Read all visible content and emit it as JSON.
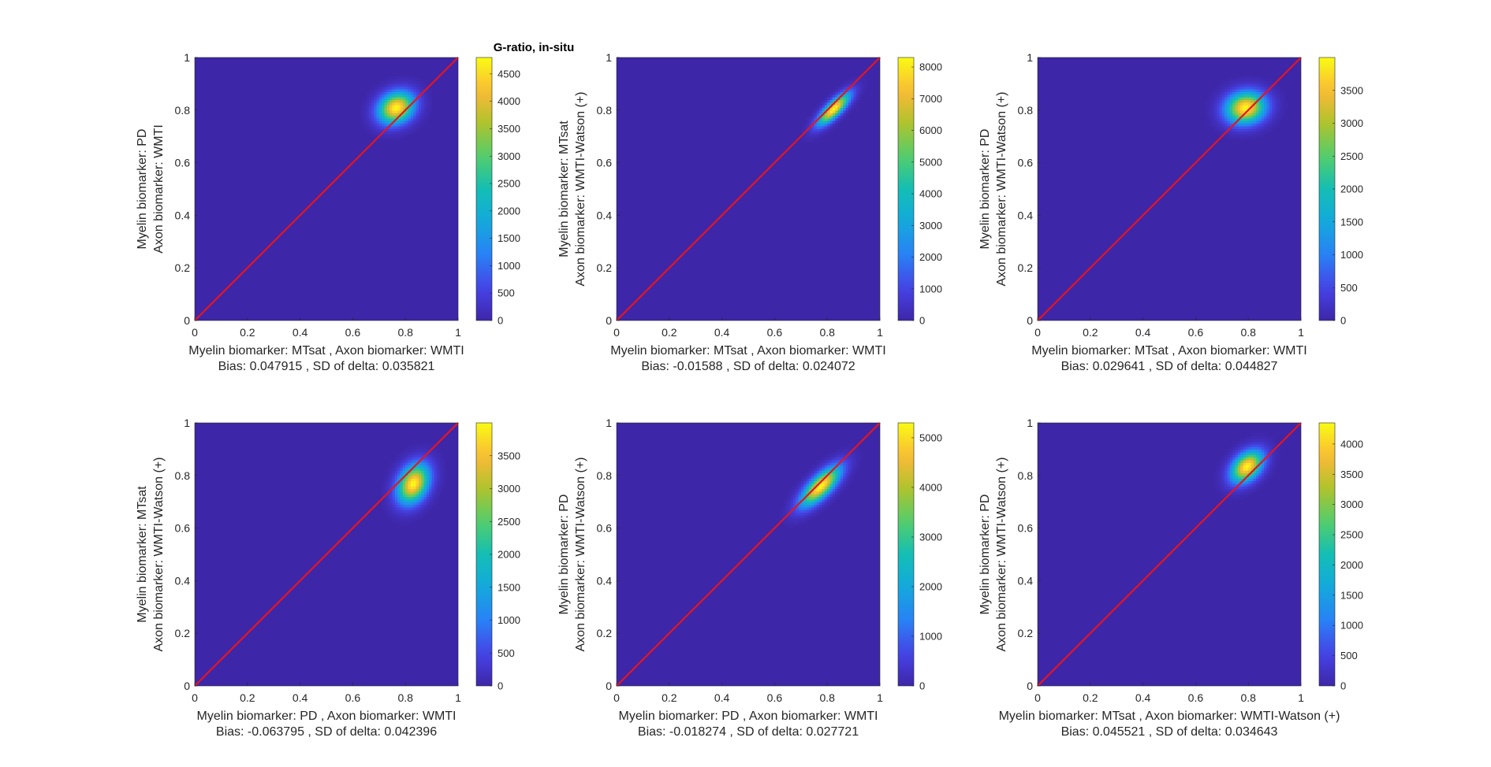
{
  "figure": {
    "title": "G-ratio, in-situ",
    "colormap": "parula"
  },
  "chart_data": [
    {
      "type": "heatmap",
      "xlabel": "Myelin biomarker: MTsat , Axon biomarker: WMTI",
      "ylabel_lines": [
        "Myelin biomarker:  PD",
        "Axon biomarker: WMTI"
      ],
      "caption": "Bias: 0.047915 , SD of delta: 0.035821",
      "xlim": [
        0,
        1
      ],
      "ylim": [
        0,
        1
      ],
      "xticks": [
        "0",
        "0.2",
        "0.4",
        "0.6",
        "0.8",
        "1"
      ],
      "yticks": [
        "0",
        "0.2",
        "0.4",
        "0.6",
        "0.8",
        "1"
      ],
      "identity_line_color": "#e8141e",
      "peak": {
        "x": 0.765,
        "y": 0.81,
        "sx": 0.045,
        "sy": 0.04,
        "rho": 0.2
      },
      "colorbar": {
        "min": 0,
        "max": 4800,
        "ticks": [
          0,
          500,
          1000,
          1500,
          2000,
          2500,
          3000,
          3500,
          4000,
          4500
        ]
      }
    },
    {
      "type": "heatmap",
      "xlabel": "Myelin biomarker: MTsat , Axon biomarker: WMTI",
      "ylabel_lines": [
        "Myelin biomarker:  MTsat",
        "Axon biomarker: WMTI-Watson (+)"
      ],
      "caption": "Bias: -0.01588 , SD of delta: 0.024072",
      "xlim": [
        0,
        1
      ],
      "ylim": [
        0,
        1
      ],
      "xticks": [
        "0",
        "0.2",
        "0.4",
        "0.6",
        "0.8",
        "1"
      ],
      "yticks": [
        "0",
        "0.2",
        "0.4",
        "0.6",
        "0.8",
        "1"
      ],
      "identity_line_color": "#e8141e",
      "peak": {
        "x": 0.825,
        "y": 0.805,
        "sx": 0.04,
        "sy": 0.04,
        "rho": 0.8
      },
      "colorbar": {
        "min": 0,
        "max": 8300,
        "ticks": [
          0,
          1000,
          2000,
          3000,
          4000,
          5000,
          6000,
          7000,
          8000
        ]
      }
    },
    {
      "type": "heatmap",
      "xlabel": "Myelin biomarker: MTsat , Axon biomarker: WMTI",
      "ylabel_lines": [
        "Myelin biomarker:  PD",
        "Axon biomarker: WMTI-Watson (+)"
      ],
      "caption": "Bias: 0.029641 , SD of delta: 0.044827",
      "xlim": [
        0,
        1
      ],
      "ylim": [
        0,
        1
      ],
      "xticks": [
        "0",
        "0.2",
        "0.4",
        "0.6",
        "0.8",
        "1"
      ],
      "yticks": [
        "0",
        "0.2",
        "0.4",
        "0.6",
        "0.8",
        "1"
      ],
      "identity_line_color": "#e8141e",
      "peak": {
        "x": 0.79,
        "y": 0.81,
        "sx": 0.05,
        "sy": 0.04,
        "rho": 0.1
      },
      "colorbar": {
        "min": 0,
        "max": 4000,
        "ticks": [
          0,
          500,
          1000,
          1500,
          2000,
          2500,
          3000,
          3500
        ]
      }
    },
    {
      "type": "heatmap",
      "xlabel": "Myelin biomarker: PD , Axon biomarker: WMTI",
      "ylabel_lines": [
        "Myelin biomarker:  MTsat",
        "Axon biomarker: WMTI-Watson (+)"
      ],
      "caption": "Bias: -0.063795 , SD of delta: 0.042396",
      "xlim": [
        0,
        1
      ],
      "ylim": [
        0,
        1
      ],
      "xticks": [
        "0",
        "0.2",
        "0.4",
        "0.6",
        "0.8",
        "1"
      ],
      "yticks": [
        "0",
        "0.2",
        "0.4",
        "0.6",
        "0.8",
        "1"
      ],
      "identity_line_color": "#e8141e",
      "peak": {
        "x": 0.83,
        "y": 0.77,
        "sx": 0.04,
        "sy": 0.05,
        "rho": 0.3
      },
      "colorbar": {
        "min": 0,
        "max": 4000,
        "ticks": [
          0,
          500,
          1000,
          1500,
          2000,
          2500,
          3000,
          3500
        ]
      }
    },
    {
      "type": "heatmap",
      "xlabel": "Myelin biomarker: PD , Axon biomarker: WMTI",
      "ylabel_lines": [
        "Myelin biomarker:  PD",
        "Axon biomarker: WMTI-Watson (+)"
      ],
      "caption": "Bias: -0.018274 , SD of delta: 0.027721",
      "xlim": [
        0,
        1
      ],
      "ylim": [
        0,
        1
      ],
      "xticks": [
        "0",
        "0.2",
        "0.4",
        "0.6",
        "0.8",
        "1"
      ],
      "yticks": [
        "0",
        "0.2",
        "0.4",
        "0.6",
        "0.8",
        "1"
      ],
      "identity_line_color": "#e8141e",
      "peak": {
        "x": 0.775,
        "y": 0.76,
        "sx": 0.05,
        "sy": 0.05,
        "rho": 0.75
      },
      "colorbar": {
        "min": 0,
        "max": 5300,
        "ticks": [
          0,
          1000,
          2000,
          3000,
          4000,
          5000
        ]
      }
    },
    {
      "type": "heatmap",
      "xlabel": "Myelin biomarker: MTsat , Axon biomarker: WMTI-Watson (+)",
      "ylabel_lines": [
        "Myelin biomarker:  PD",
        "Axon biomarker: WMTI-Watson (+)"
      ],
      "caption": "Bias: 0.045521 , SD of delta: 0.034643",
      "xlim": [
        0,
        1
      ],
      "ylim": [
        0,
        1
      ],
      "xticks": [
        "0",
        "0.2",
        "0.4",
        "0.6",
        "0.8",
        "1"
      ],
      "yticks": [
        "0",
        "0.2",
        "0.4",
        "0.6",
        "0.8",
        "1"
      ],
      "identity_line_color": "#e8141e",
      "peak": {
        "x": 0.795,
        "y": 0.835,
        "sx": 0.04,
        "sy": 0.04,
        "rho": 0.4
      },
      "colorbar": {
        "min": 0,
        "max": 4350,
        "ticks": [
          0,
          500,
          1000,
          1500,
          2000,
          2500,
          3000,
          3500,
          4000
        ]
      }
    }
  ]
}
